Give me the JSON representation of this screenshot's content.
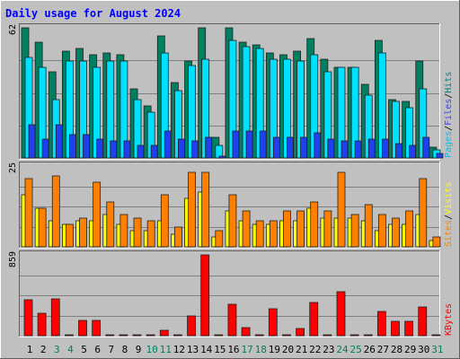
{
  "chart_data": {
    "type": "bar",
    "title": "Daily usage for August 2024",
    "categories": [
      "1",
      "2",
      "3",
      "4",
      "5",
      "6",
      "7",
      "8",
      "9",
      "10",
      "11",
      "12",
      "13",
      "14",
      "15",
      "16",
      "17",
      "18",
      "19",
      "20",
      "21",
      "22",
      "23",
      "24",
      "25",
      "26",
      "27",
      "28",
      "29",
      "30",
      "31"
    ],
    "weekend_days": [
      "3",
      "4",
      "10",
      "11",
      "17",
      "18",
      "24",
      "25",
      "31"
    ],
    "panels": [
      {
        "id": "requests",
        "scale_label": "62",
        "ylim": [
          0,
          62
        ],
        "axis_label": [
          "Pages",
          "Files",
          "Hits"
        ],
        "axis_label_colors": [
          "#00c0f0",
          "#4040ff",
          "#008080"
        ],
        "series": [
          {
            "name": "Hits",
            "color": "#008060",
            "values": [
              62,
              55,
              41,
              51,
              52,
              49,
              50,
              49,
              33,
              25,
              58,
              36,
              46,
              62,
              10,
              62,
              55,
              54,
              50,
              49,
              51,
              57,
              47,
              43,
              43,
              35,
              56,
              28,
              27,
              46,
              5
            ]
          },
          {
            "name": "Files",
            "color": "#00e0ff",
            "values": [
              48,
              43,
              28,
              46,
              46,
              43,
              46,
              46,
              28,
              22,
              50,
              32,
              44,
              47,
              6,
              56,
              53,
              52,
              47,
              47,
              46,
              49,
              41,
              43,
              43,
              30,
              50,
              27,
              24,
              33,
              4
            ]
          },
          {
            "name": "Pages",
            "color": "#2040f0",
            "values": [
              16,
              9,
              16,
              11,
              11,
              9,
              8,
              8,
              6,
              6,
              13,
              9,
              8,
              10,
              1,
              13,
              13,
              13,
              10,
              10,
              10,
              12,
              9,
              8,
              8,
              9,
              9,
              7,
              6,
              10,
              2
            ]
          }
        ]
      },
      {
        "id": "visits",
        "scale_label": "25",
        "ylim": [
          0,
          25
        ],
        "axis_label": [
          "Sites",
          "Visits"
        ],
        "axis_label_colors": [
          "#ff8000",
          "#ffff00"
        ],
        "series": [
          {
            "name": "Visits",
            "color": "#ffff00",
            "values": [
              16,
              12,
              8,
              7,
              8,
              8,
              10,
              7,
              5,
              5,
              8,
              4,
              15,
              17,
              3,
              11,
              8,
              7,
              7,
              8,
              8,
              12,
              9,
              9,
              9,
              8,
              5,
              7,
              7,
              10,
              2
            ]
          },
          {
            "name": "Sites",
            "color": "#ff8000",
            "values": [
              21,
              12,
              22,
              7,
              9,
              20,
              14,
              10,
              9,
              8,
              16,
              6,
              23,
              23,
              5,
              16,
              11,
              8,
              8,
              11,
              11,
              14,
              11,
              23,
              10,
              13,
              10,
              9,
              11,
              21,
              3
            ]
          }
        ]
      },
      {
        "id": "kbytes",
        "scale_label": "859",
        "ylim": [
          0,
          859
        ],
        "axis_label": [
          "KBytes"
        ],
        "axis_label_colors": [
          "#ff0000"
        ],
        "series": [
          {
            "name": "KBytes",
            "color": "#ff0000",
            "values": [
              382,
              238,
              389,
              0,
              160,
              165,
              0,
              0,
              0,
              0,
              60,
              0,
              210,
              859,
              0,
              330,
              83,
              0,
              290,
              0,
              75,
              350,
              0,
              465,
              0,
              0,
              255,
              150,
              150,
              310,
              0
            ]
          }
        ]
      }
    ]
  },
  "colors": {
    "background": "#c0c0c0",
    "title_color": "#0000ff",
    "weekday_label": "#000000",
    "weekend_label": "#00805c",
    "gridline": "#808080"
  }
}
